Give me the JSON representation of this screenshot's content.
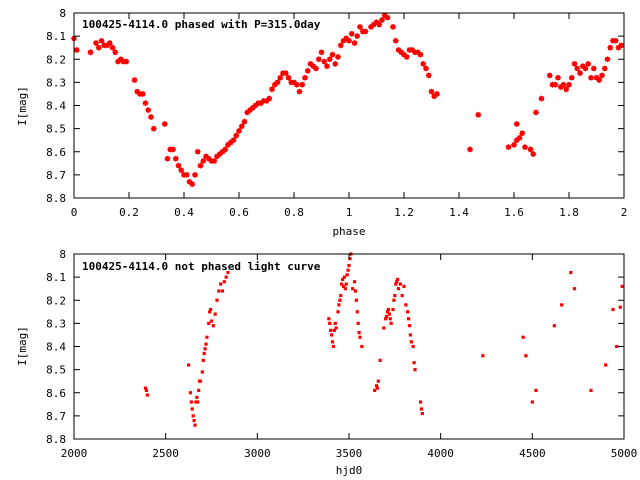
{
  "chart_data": [
    {
      "type": "scatter",
      "title": "100425-4114.0 phased with P=315.0day",
      "xlabel": "phase",
      "ylabel": "I[mag]",
      "xlim": [
        0,
        2
      ],
      "ylim": [
        8.8,
        8.0
      ],
      "y_inverted": true,
      "x_ticks": [
        "0",
        "0.2",
        "0.4",
        "0.6",
        "0.8",
        "1",
        "1.2",
        "1.4",
        "1.6",
        "1.8",
        "2"
      ],
      "y_ticks": [
        "8",
        "8.1",
        "8.2",
        "8.3",
        "8.4",
        "8.5",
        "8.6",
        "8.7",
        "8.8"
      ],
      "grid": false,
      "color": "#ff0000",
      "points": [
        [
          0.0,
          8.11
        ],
        [
          0.01,
          8.16
        ],
        [
          0.06,
          8.17
        ],
        [
          0.08,
          8.13
        ],
        [
          0.09,
          8.15
        ],
        [
          0.1,
          8.12
        ],
        [
          0.11,
          8.14
        ],
        [
          0.12,
          8.14
        ],
        [
          0.13,
          8.13
        ],
        [
          0.14,
          8.15
        ],
        [
          0.15,
          8.17
        ],
        [
          0.16,
          8.21
        ],
        [
          0.17,
          8.2
        ],
        [
          0.18,
          8.21
        ],
        [
          0.19,
          8.21
        ],
        [
          0.22,
          8.29
        ],
        [
          0.23,
          8.34
        ],
        [
          0.24,
          8.35
        ],
        [
          0.25,
          8.35
        ],
        [
          0.26,
          8.39
        ],
        [
          0.27,
          8.42
        ],
        [
          0.28,
          8.45
        ],
        [
          0.29,
          8.5
        ],
        [
          0.33,
          8.48
        ],
        [
          0.34,
          8.63
        ],
        [
          0.35,
          8.59
        ],
        [
          0.36,
          8.59
        ],
        [
          0.37,
          8.63
        ],
        [
          0.38,
          8.66
        ],
        [
          0.39,
          8.68
        ],
        [
          0.4,
          8.7
        ],
        [
          0.41,
          8.7
        ],
        [
          0.42,
          8.73
        ],
        [
          0.43,
          8.74
        ],
        [
          0.44,
          8.7
        ],
        [
          0.45,
          8.6
        ],
        [
          0.46,
          8.66
        ],
        [
          0.47,
          8.64
        ],
        [
          0.48,
          8.62
        ],
        [
          0.49,
          8.63
        ],
        [
          0.5,
          8.64
        ],
        [
          0.51,
          8.64
        ],
        [
          0.52,
          8.62
        ],
        [
          0.53,
          8.61
        ],
        [
          0.54,
          8.6
        ],
        [
          0.55,
          8.59
        ],
        [
          0.56,
          8.57
        ],
        [
          0.57,
          8.56
        ],
        [
          0.58,
          8.55
        ],
        [
          0.59,
          8.53
        ],
        [
          0.6,
          8.51
        ],
        [
          0.61,
          8.49
        ],
        [
          0.62,
          8.47
        ],
        [
          0.63,
          8.43
        ],
        [
          0.64,
          8.42
        ],
        [
          0.65,
          8.41
        ],
        [
          0.66,
          8.4
        ],
        [
          0.67,
          8.39
        ],
        [
          0.68,
          8.39
        ],
        [
          0.69,
          8.38
        ],
        [
          0.7,
          8.38
        ],
        [
          0.71,
          8.37
        ],
        [
          0.72,
          8.33
        ],
        [
          0.73,
          8.31
        ],
        [
          0.74,
          8.3
        ],
        [
          0.75,
          8.28
        ],
        [
          0.76,
          8.26
        ],
        [
          0.77,
          8.26
        ],
        [
          0.78,
          8.28
        ],
        [
          0.79,
          8.3
        ],
        [
          0.8,
          8.3
        ],
        [
          0.81,
          8.31
        ],
        [
          0.82,
          8.34
        ],
        [
          0.83,
          8.31
        ],
        [
          0.84,
          8.28
        ],
        [
          0.85,
          8.25
        ],
        [
          0.86,
          8.22
        ],
        [
          0.87,
          8.23
        ],
        [
          0.88,
          8.24
        ],
        [
          0.89,
          8.2
        ],
        [
          0.9,
          8.17
        ],
        [
          0.91,
          8.21
        ],
        [
          0.92,
          8.23
        ],
        [
          0.93,
          8.2
        ],
        [
          0.94,
          8.18
        ],
        [
          0.95,
          8.22
        ],
        [
          0.96,
          8.19
        ],
        [
          0.97,
          8.14
        ],
        [
          0.98,
          8.12
        ],
        [
          0.99,
          8.11
        ],
        [
          1.0,
          8.12
        ],
        [
          1.01,
          8.09
        ],
        [
          1.02,
          8.13
        ],
        [
          1.03,
          8.1
        ],
        [
          1.04,
          8.06
        ],
        [
          1.05,
          8.08
        ],
        [
          1.06,
          8.08
        ],
        [
          1.08,
          8.06
        ],
        [
          1.09,
          8.05
        ],
        [
          1.1,
          8.04
        ],
        [
          1.11,
          8.05
        ],
        [
          1.12,
          8.03
        ],
        [
          1.13,
          8.01
        ],
        [
          1.14,
          8.02
        ],
        [
          1.16,
          8.06
        ],
        [
          1.17,
          8.12
        ],
        [
          1.18,
          8.16
        ],
        [
          1.19,
          8.17
        ],
        [
          1.2,
          8.18
        ],
        [
          1.21,
          8.19
        ],
        [
          1.22,
          8.16
        ],
        [
          1.23,
          8.16
        ],
        [
          1.24,
          8.17
        ],
        [
          1.25,
          8.17
        ],
        [
          1.26,
          8.18
        ],
        [
          1.27,
          8.22
        ],
        [
          1.28,
          8.24
        ],
        [
          1.29,
          8.27
        ],
        [
          1.3,
          8.34
        ],
        [
          1.31,
          8.36
        ],
        [
          1.32,
          8.35
        ],
        [
          1.44,
          8.59
        ],
        [
          1.47,
          8.44
        ],
        [
          1.58,
          8.58
        ],
        [
          1.6,
          8.57
        ],
        [
          1.61,
          8.48
        ],
        [
          1.61,
          8.55
        ],
        [
          1.62,
          8.54
        ],
        [
          1.63,
          8.52
        ],
        [
          1.64,
          8.58
        ],
        [
          1.66,
          8.59
        ],
        [
          1.67,
          8.61
        ],
        [
          1.68,
          8.43
        ],
        [
          1.7,
          8.37
        ],
        [
          1.73,
          8.27
        ],
        [
          1.74,
          8.31
        ],
        [
          1.75,
          8.31
        ],
        [
          1.76,
          8.28
        ],
        [
          1.77,
          8.32
        ],
        [
          1.78,
          8.31
        ],
        [
          1.79,
          8.33
        ],
        [
          1.8,
          8.31
        ],
        [
          1.81,
          8.28
        ],
        [
          1.82,
          8.22
        ],
        [
          1.83,
          8.24
        ],
        [
          1.84,
          8.26
        ],
        [
          1.85,
          8.23
        ],
        [
          1.86,
          8.24
        ],
        [
          1.87,
          8.22
        ],
        [
          1.88,
          8.28
        ],
        [
          1.89,
          8.24
        ],
        [
          1.9,
          8.28
        ],
        [
          1.91,
          8.29
        ],
        [
          1.92,
          8.27
        ],
        [
          1.93,
          8.24
        ],
        [
          1.94,
          8.2
        ],
        [
          1.95,
          8.15
        ],
        [
          1.96,
          8.12
        ],
        [
          1.97,
          8.12
        ],
        [
          1.98,
          8.15
        ],
        [
          1.99,
          8.14
        ]
      ]
    },
    {
      "type": "scatter",
      "title": "100425-4114.0 not phased light curve",
      "xlabel": "hjd0",
      "ylabel": "I[mag]",
      "xlim": [
        2000,
        5000
      ],
      "ylim": [
        8.8,
        8.0
      ],
      "y_inverted": true,
      "x_ticks": [
        "2000",
        "2500",
        "3000",
        "3500",
        "4000",
        "4500",
        "5000"
      ],
      "y_ticks": [
        "8",
        "8.1",
        "8.2",
        "8.3",
        "8.4",
        "8.5",
        "8.6",
        "8.7",
        "8.8"
      ],
      "grid": false,
      "color": "#ff0000",
      "points": [
        [
          2390,
          8.58
        ],
        [
          2395,
          8.59
        ],
        [
          2400,
          8.61
        ],
        [
          2625,
          8.48
        ],
        [
          2635,
          8.6
        ],
        [
          2640,
          8.64
        ],
        [
          2645,
          8.67
        ],
        [
          2650,
          8.7
        ],
        [
          2655,
          8.72
        ],
        [
          2660,
          8.74
        ],
        [
          2665,
          8.64
        ],
        [
          2670,
          8.62
        ],
        [
          2675,
          8.64
        ],
        [
          2680,
          8.59
        ],
        [
          2685,
          8.55
        ],
        [
          2690,
          8.55
        ],
        [
          2700,
          8.51
        ],
        [
          2705,
          8.46
        ],
        [
          2710,
          8.43
        ],
        [
          2715,
          8.41
        ],
        [
          2720,
          8.39
        ],
        [
          2725,
          8.36
        ],
        [
          2735,
          8.3
        ],
        [
          2740,
          8.25
        ],
        [
          2745,
          8.24
        ],
        [
          2750,
          8.29
        ],
        [
          2760,
          8.31
        ],
        [
          2770,
          8.26
        ],
        [
          2780,
          8.2
        ],
        [
          2790,
          8.16
        ],
        [
          2800,
          8.13
        ],
        [
          2810,
          8.16
        ],
        [
          2820,
          8.12
        ],
        [
          2830,
          8.1
        ],
        [
          2840,
          8.08
        ],
        [
          3390,
          8.28
        ],
        [
          3395,
          8.3
        ],
        [
          3400,
          8.33
        ],
        [
          3405,
          8.35
        ],
        [
          3410,
          8.38
        ],
        [
          3415,
          8.4
        ],
        [
          3420,
          8.33
        ],
        [
          3425,
          8.3
        ],
        [
          3430,
          8.32
        ],
        [
          3440,
          8.25
        ],
        [
          3445,
          8.22
        ],
        [
          3450,
          8.2
        ],
        [
          3455,
          8.18
        ],
        [
          3460,
          8.13
        ],
        [
          3465,
          8.11
        ],
        [
          3470,
          8.14
        ],
        [
          3475,
          8.1
        ],
        [
          3480,
          8.15
        ],
        [
          3485,
          8.13
        ],
        [
          3490,
          8.09
        ],
        [
          3495,
          8.07
        ],
        [
          3500,
          8.05
        ],
        [
          3505,
          8.02
        ],
        [
          3510,
          8.0
        ],
        [
          3520,
          8.15
        ],
        [
          3530,
          8.12
        ],
        [
          3535,
          8.16
        ],
        [
          3540,
          8.2
        ],
        [
          3545,
          8.25
        ],
        [
          3550,
          8.3
        ],
        [
          3555,
          8.34
        ],
        [
          3560,
          8.36
        ],
        [
          3570,
          8.4
        ],
        [
          3640,
          8.59
        ],
        [
          3650,
          8.57
        ],
        [
          3655,
          8.58
        ],
        [
          3660,
          8.55
        ],
        [
          3670,
          8.46
        ],
        [
          3690,
          8.32
        ],
        [
          3700,
          8.28
        ],
        [
          3705,
          8.27
        ],
        [
          3710,
          8.25
        ],
        [
          3715,
          8.24
        ],
        [
          3720,
          8.26
        ],
        [
          3725,
          8.28
        ],
        [
          3730,
          8.3
        ],
        [
          3740,
          8.24
        ],
        [
          3745,
          8.2
        ],
        [
          3750,
          8.18
        ],
        [
          3755,
          8.13
        ],
        [
          3760,
          8.12
        ],
        [
          3765,
          8.11
        ],
        [
          3770,
          8.15
        ],
        [
          3780,
          8.13
        ],
        [
          3790,
          8.18
        ],
        [
          3800,
          8.14
        ],
        [
          3810,
          8.22
        ],
        [
          3820,
          8.25
        ],
        [
          3825,
          8.28
        ],
        [
          3830,
          8.31
        ],
        [
          3835,
          8.35
        ],
        [
          3840,
          8.38
        ],
        [
          3850,
          8.4
        ],
        [
          3855,
          8.47
        ],
        [
          3860,
          8.5
        ],
        [
          3890,
          8.64
        ],
        [
          3895,
          8.67
        ],
        [
          3900,
          8.69
        ],
        [
          4230,
          8.44
        ],
        [
          4450,
          8.36
        ],
        [
          4465,
          8.44
        ],
        [
          4500,
          8.64
        ],
        [
          4520,
          8.59
        ],
        [
          4620,
          8.31
        ],
        [
          4660,
          8.22
        ],
        [
          4710,
          8.08
        ],
        [
          4730,
          8.15
        ],
        [
          4820,
          8.59
        ],
        [
          4900,
          8.48
        ],
        [
          4940,
          8.24
        ],
        [
          4960,
          8.4
        ],
        [
          4980,
          8.23
        ],
        [
          4990,
          8.14
        ]
      ]
    }
  ]
}
